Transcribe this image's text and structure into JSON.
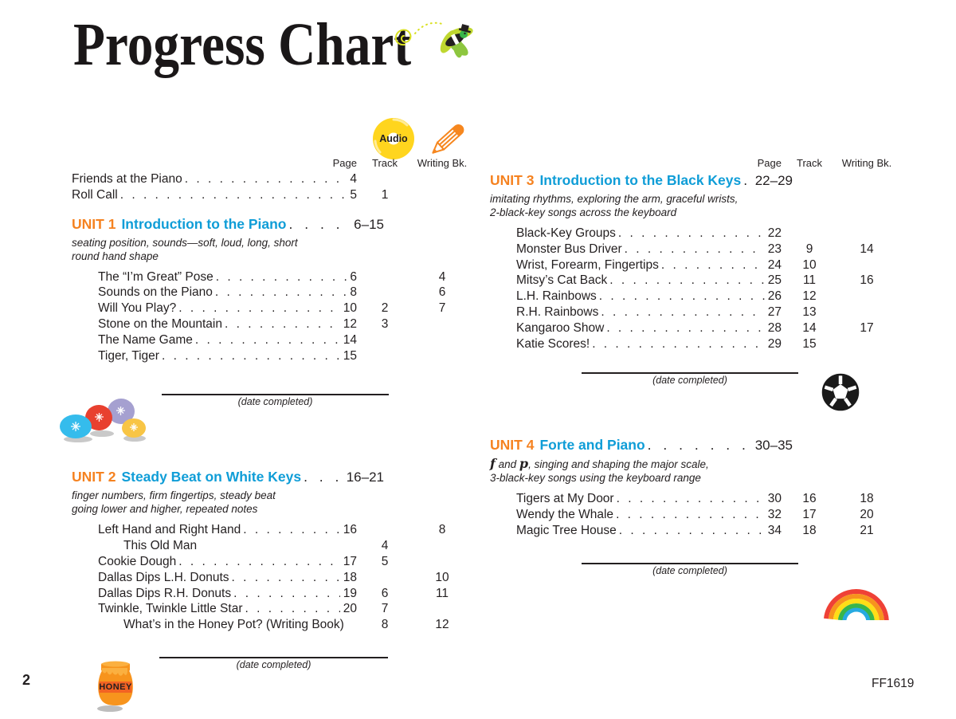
{
  "page": {
    "title": "Progress Chart",
    "footer_page_number": "2",
    "footer_catalog": "FF1619"
  },
  "labels": {
    "date_completed": "(date completed)",
    "honey": "HONEY"
  },
  "table_headers": {
    "page": "Page",
    "track": "Track",
    "writing": "Writing Bk.",
    "audio": "Audio"
  },
  "icons": {
    "firefly": "firefly-icon",
    "audio_cd": "audio-cd-icon",
    "pencil": "pencil-icon",
    "balloons": "sparkle-balloons-icon",
    "honey_pot": "honey-pot-icon",
    "soccer_ball": "soccer-ball-icon",
    "rainbow": "rainbow-icon"
  },
  "colors": {
    "accent_orange": "#f58220",
    "accent_blue": "#0f9dd7",
    "cd_yellow": "#ffd51e",
    "ink": "#231f20"
  },
  "intro_rows": [
    {
      "title": "Friends at the Piano",
      "page": "4",
      "track": "",
      "writing": "",
      "leader": true,
      "indent": false
    },
    {
      "title": "Roll Call",
      "page": "5",
      "track": "1",
      "writing": "",
      "leader": true,
      "indent": false
    }
  ],
  "units": {
    "unit1": {
      "label": "UNIT 1",
      "title": "Introduction to the Piano",
      "pages": "6–15",
      "desc1": "seating position, sounds—soft, loud, long, short",
      "desc2": "round hand shape",
      "songs": [
        {
          "title": "The “I’m Great” Pose",
          "page": "6",
          "track": "",
          "writing": "4",
          "leader": true,
          "indent": false
        },
        {
          "title": "Sounds on the Piano",
          "page": "8",
          "track": "",
          "writing": "6",
          "leader": true,
          "indent": false
        },
        {
          "title": "Will You Play?",
          "page": "10",
          "track": "2",
          "writing": "7",
          "leader": true,
          "indent": false
        },
        {
          "title": "Stone on the Mountain",
          "page": "12",
          "track": "3",
          "writing": "",
          "leader": true,
          "indent": false
        },
        {
          "title": "The Name Game",
          "page": "14",
          "track": "",
          "writing": "",
          "leader": true,
          "indent": false
        },
        {
          "title": "Tiger, Tiger",
          "page": "15",
          "track": "",
          "writing": "",
          "leader": true,
          "indent": false
        }
      ]
    },
    "unit2": {
      "label": "UNIT 2",
      "title": "Steady Beat on White Keys",
      "pages": "16–21",
      "desc1": "finger numbers, firm fingertips, steady beat",
      "desc2": "going lower and higher, repeated notes",
      "songs": [
        {
          "title": "Left Hand and Right Hand",
          "page": "16",
          "track": "",
          "writing": "8",
          "leader": true,
          "indent": false
        },
        {
          "title": "This Old Man",
          "page": "",
          "track": "4",
          "writing": "",
          "leader": false,
          "indent": true
        },
        {
          "title": "Cookie Dough",
          "page": "17",
          "track": "5",
          "writing": "",
          "leader": true,
          "indent": false
        },
        {
          "title": "Dallas Dips L.H. Donuts",
          "page": "18",
          "track": "",
          "writing": "10",
          "leader": true,
          "indent": false
        },
        {
          "title": "Dallas Dips R.H. Donuts",
          "page": "19",
          "track": "6",
          "writing": "11",
          "leader": true,
          "indent": false
        },
        {
          "title": "Twinkle, Twinkle Little Star",
          "page": "20",
          "track": "7",
          "writing": "",
          "leader": true,
          "indent": false
        },
        {
          "title": "What’s in the Honey Pot? (Writing Book)",
          "page": "",
          "track": "8",
          "writing": "12",
          "leader": false,
          "indent": true
        }
      ]
    },
    "unit3": {
      "label": "UNIT 3",
      "title": "Introduction to the Black Keys",
      "pages": "22–29",
      "desc1": "imitating rhythms, exploring the arm, graceful wrists,",
      "desc2": "2-black-key songs across the keyboard",
      "songs": [
        {
          "title": "Black-Key Groups",
          "page": "22",
          "track": "",
          "writing": "",
          "leader": true,
          "indent": false
        },
        {
          "title": "Monster Bus Driver",
          "page": "23",
          "track": "9",
          "writing": "14",
          "leader": true,
          "indent": false
        },
        {
          "title": "Wrist, Forearm, Fingertips",
          "page": "24",
          "track": "10",
          "writing": "",
          "leader": true,
          "indent": false
        },
        {
          "title": "Mitsy’s Cat Back",
          "page": "25",
          "track": "11",
          "writing": "16",
          "leader": true,
          "indent": false
        },
        {
          "title": "L.H. Rainbows",
          "page": "26",
          "track": "12",
          "writing": "",
          "leader": true,
          "indent": false
        },
        {
          "title": "R.H. Rainbows",
          "page": "27",
          "track": "13",
          "writing": "",
          "leader": true,
          "indent": false
        },
        {
          "title": "Kangaroo Show",
          "page": "28",
          "track": "14",
          "writing": "17",
          "leader": true,
          "indent": false
        },
        {
          "title": "Katie Scores!",
          "page": "29",
          "track": "15",
          "writing": "",
          "leader": true,
          "indent": false
        }
      ]
    },
    "unit4": {
      "label": "UNIT 4",
      "title": "Forte and Piano",
      "pages": "30–35",
      "desc1_dyn1": "f",
      "desc1_mid": " and ",
      "desc1_dyn2": "p",
      "desc1_rest": ", singing and shaping the major scale,",
      "desc2": "3-black-key songs using the keyboard range",
      "songs": [
        {
          "title": "Tigers at My Door",
          "page": "30",
          "track": "16",
          "writing": "18",
          "leader": true,
          "indent": false
        },
        {
          "title": "Wendy the Whale",
          "page": "32",
          "track": "17",
          "writing": "20",
          "leader": true,
          "indent": false
        },
        {
          "title": "Magic Tree House",
          "page": "34",
          "track": "18",
          "writing": "21",
          "leader": true,
          "indent": false
        }
      ]
    }
  }
}
